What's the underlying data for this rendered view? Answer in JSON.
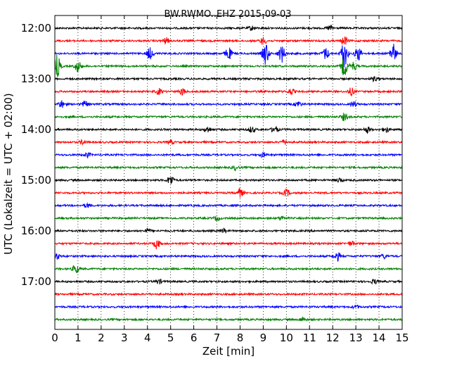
{
  "chart_data": {
    "type": "line",
    "title": "BW.RWMO..EHZ 2015-09-03",
    "xlabel": "Zeit  [min]",
    "ylabel": "UTC (Lokalzeit = UTC + 02:00)",
    "xlim": [
      0,
      15
    ],
    "x_ticks": [
      "0",
      "1",
      "2",
      "3",
      "4",
      "5",
      "6",
      "7",
      "8",
      "9",
      "10",
      "11",
      "12",
      "13",
      "14",
      "15"
    ],
    "y_ticks": [
      "12:00",
      "13:00",
      "14:00",
      "15:00",
      "16:00",
      "17:00"
    ],
    "grid": "vertical-dotted",
    "colors": [
      "#000000",
      "#ff0000",
      "#0000ff",
      "#008000"
    ],
    "series": [
      {
        "offset": "12:00",
        "bursts": [
          [
            8.5,
            3
          ],
          [
            11.9,
            4
          ]
        ]
      },
      {
        "offset": "12:15",
        "bursts": [
          [
            4.8,
            4
          ],
          [
            9.0,
            5
          ],
          [
            12.5,
            6
          ]
        ]
      },
      {
        "offset": "12:30",
        "bursts": [
          [
            4.1,
            8
          ],
          [
            7.5,
            9
          ],
          [
            9.1,
            16
          ],
          [
            9.8,
            12
          ],
          [
            11.7,
            8
          ],
          [
            12.5,
            20
          ],
          [
            13.1,
            10
          ],
          [
            14.6,
            14
          ]
        ]
      },
      {
        "offset": "12:45",
        "bursts": [
          [
            0.1,
            16
          ],
          [
            1.0,
            8
          ],
          [
            12.5,
            14
          ],
          [
            12.9,
            6
          ]
        ]
      },
      {
        "offset": "13:00",
        "bursts": [
          [
            13.8,
            3
          ]
        ]
      },
      {
        "offset": "13:15",
        "bursts": [
          [
            4.5,
            4
          ],
          [
            5.5,
            5
          ],
          [
            10.2,
            4
          ],
          [
            12.8,
            5
          ]
        ]
      },
      {
        "offset": "13:30",
        "bursts": [
          [
            0.3,
            5
          ],
          [
            1.3,
            4
          ],
          [
            10.5,
            4
          ],
          [
            12.9,
            4
          ]
        ]
      },
      {
        "offset": "13:45",
        "bursts": [
          [
            12.5,
            5
          ]
        ]
      },
      {
        "offset": "14:00",
        "bursts": [
          [
            6.6,
            4
          ],
          [
            8.5,
            4
          ],
          [
            9.5,
            5
          ],
          [
            13.5,
            4
          ],
          [
            14.3,
            4
          ]
        ]
      },
      {
        "offset": "14:15",
        "bursts": [
          [
            1.2,
            3
          ],
          [
            5.0,
            3
          ],
          [
            9.9,
            3
          ]
        ]
      },
      {
        "offset": "14:30",
        "bursts": [
          [
            1.4,
            3
          ],
          [
            9.0,
            3
          ]
        ]
      },
      {
        "offset": "14:45",
        "bursts": [
          [
            7.8,
            3
          ]
        ]
      },
      {
        "offset": "15:00",
        "bursts": [
          [
            5.0,
            7
          ],
          [
            12.3,
            3
          ]
        ]
      },
      {
        "offset": "15:15",
        "bursts": [
          [
            8.0,
            6
          ],
          [
            10.0,
            5
          ]
        ]
      },
      {
        "offset": "15:30",
        "bursts": [
          [
            1.4,
            3
          ]
        ]
      },
      {
        "offset": "15:45",
        "bursts": [
          [
            7.0,
            3
          ],
          [
            9.8,
            3
          ]
        ]
      },
      {
        "offset": "16:00",
        "bursts": [
          [
            4.0,
            3
          ],
          [
            7.3,
            3
          ]
        ]
      },
      {
        "offset": "16:15",
        "bursts": [
          [
            4.4,
            7
          ],
          [
            12.8,
            3
          ]
        ]
      },
      {
        "offset": "16:30",
        "bursts": [
          [
            0.1,
            4
          ],
          [
            12.2,
            6
          ],
          [
            14.2,
            3
          ]
        ]
      },
      {
        "offset": "16:45",
        "bursts": [
          [
            0.9,
            6
          ]
        ]
      },
      {
        "offset": "17:00",
        "bursts": [
          [
            4.5,
            3
          ],
          [
            13.8,
            3
          ]
        ]
      },
      {
        "offset": "17:15",
        "bursts": []
      },
      {
        "offset": "17:30",
        "bursts": [
          [
            13.0,
            2
          ]
        ]
      },
      {
        "offset": "17:45",
        "bursts": [
          [
            10.7,
            3
          ]
        ]
      }
    ]
  }
}
